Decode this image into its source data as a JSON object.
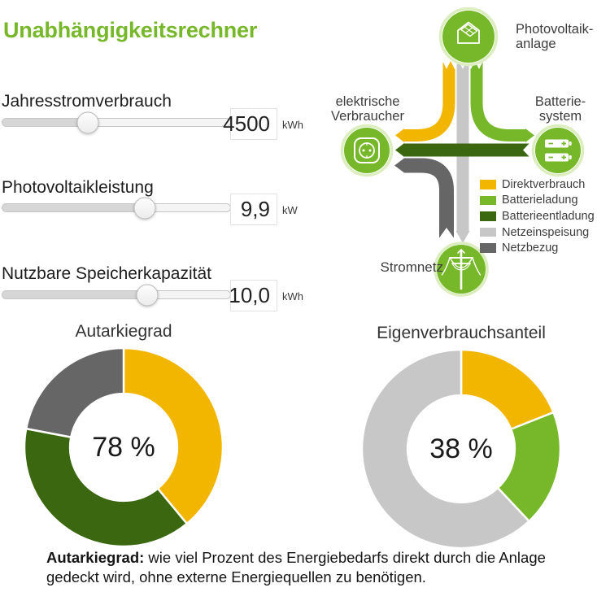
{
  "title": "Unabhängigkeitsrechner",
  "colors": {
    "brand_green": "#76b82a",
    "ring_green": "#dcedc0",
    "yellow": "#f2b600",
    "light_green": "#76b82a",
    "dark_green": "#3a670f",
    "light_gray": "#c7c7c7",
    "dark_gray": "#666666",
    "title_green": "#76b82a",
    "white": "#ffffff"
  },
  "sliders": [
    {
      "label": "Jahresstromverbrauch",
      "value": "4500",
      "unit": "kWh",
      "pct": 37.5
    },
    {
      "label": "Photovoltaikleistung",
      "value": "9,9",
      "unit": "kW",
      "pct": 62.5
    },
    {
      "label": "Nutzbare Speicherkapazität",
      "value": "10,0",
      "unit": "kWh",
      "pct": 63.5
    }
  ],
  "diagram": {
    "nodes": {
      "pv": {
        "line1": "Photovoltaik-",
        "line2": "anlage"
      },
      "consumer": {
        "line1": "elektrische",
        "line2": "Verbraucher"
      },
      "battery": {
        "line1": "Batterie-",
        "line2": "system"
      },
      "grid": {
        "line1": "Stromnetz"
      }
    },
    "legend": [
      {
        "label": "Direktverbrauch",
        "color": "yellow"
      },
      {
        "label": "Batterieladung",
        "color": "light_green"
      },
      {
        "label": "Batterieentladung",
        "color": "dark_green"
      },
      {
        "label": "Netzeinspeisung",
        "color": "light_gray"
      },
      {
        "label": "Netzbezug",
        "color": "dark_gray"
      }
    ]
  },
  "chart_data": [
    {
      "type": "pie",
      "title": "Autarkiegrad",
      "center_label": "78 %",
      "hole_ratio": 0.54,
      "unit": "%",
      "segments": [
        {
          "label": "Direktverbrauch",
          "value": 39,
          "color": "yellow"
        },
        {
          "label": "Batterieentladung",
          "value": 39,
          "color": "dark_green"
        },
        {
          "label": "Netzbezug",
          "value": 22,
          "color": "dark_gray"
        }
      ]
    },
    {
      "type": "pie",
      "title": "Eigenverbrauchsanteil",
      "center_label": "38 %",
      "hole_ratio": 0.54,
      "unit": "%",
      "segments": [
        {
          "label": "Direktverbrauch",
          "value": 19,
          "color": "yellow"
        },
        {
          "label": "Batterieladung",
          "value": 19,
          "color": "light_green"
        },
        {
          "label": "Netzeinspeisung",
          "value": 62,
          "color": "light_gray"
        }
      ]
    }
  ],
  "caption": {
    "lead": "Autarkiegrad:",
    "text": " wie viel Prozent des Energiebedarfs direkt durch die Anlage gedeckt wird, ohne externe Energiequellen zu benötigen."
  }
}
